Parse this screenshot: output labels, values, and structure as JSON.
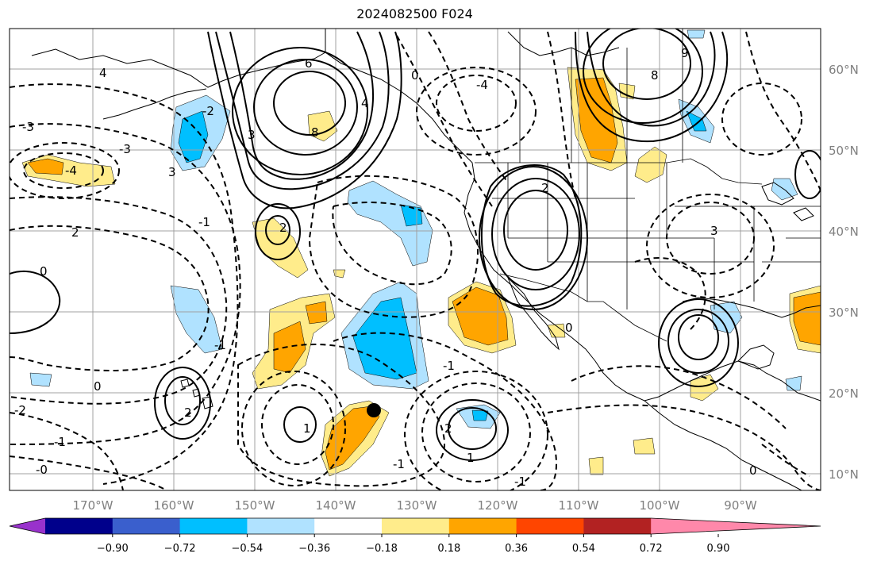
{
  "title": "2024082500 F024",
  "lon_ticks": [
    "170°W",
    "160°W",
    "150°W",
    "140°W",
    "130°W",
    "120°W",
    "110°W",
    "100°W",
    "90°W"
  ],
  "lat_ticks": [
    "60°N",
    "50°N",
    "40°N",
    "30°N",
    "20°N",
    "10°N"
  ],
  "colorbar": {
    "ticks": [
      "−0.90",
      "−0.72",
      "−0.54",
      "−0.36",
      "−0.18",
      "0.18",
      "0.36",
      "0.54",
      "0.72",
      "0.90"
    ],
    "colors": [
      "#9932cc",
      "#00008b",
      "#3a5fcd",
      "#00bfff",
      "#b0e2ff",
      "#ffffff",
      "#ffec8b",
      "#ffa500",
      "#ff4500",
      "#b22222",
      "#ff88aa"
    ]
  },
  "contour_labels": [
    "6",
    "8",
    "4",
    "3",
    "2",
    "0",
    "-2",
    "-3",
    "-4",
    "3",
    "-1",
    "2",
    "0",
    "-3",
    "9",
    "8",
    "3",
    "-1",
    "0",
    "-1",
    "2",
    "1",
    "0",
    "-2",
    "-1",
    "-0",
    "-1",
    "4",
    "-4",
    "-1",
    "0",
    "2",
    "1",
    "2"
  ],
  "marker": "storm-center-dot"
}
